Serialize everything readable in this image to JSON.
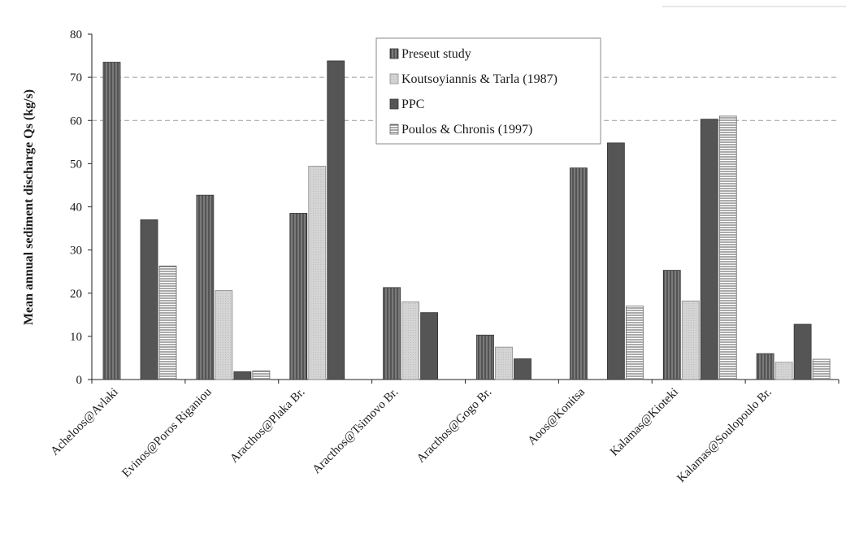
{
  "chart_data": {
    "type": "bar",
    "title": "",
    "xlabel": "",
    "ylabel": "Mean annual sediment discharge Qs (kg/s)",
    "ylim": [
      0,
      80
    ],
    "yticks": [
      0,
      10,
      20,
      30,
      40,
      50,
      60,
      70,
      80
    ],
    "grid": "dashed horizontal at 60 and 70",
    "legend_position": "top-center",
    "categories": [
      "Acheloos@Avlaki",
      "Evinos@Poros Riganiou",
      "Aracthos@Plaka Br.",
      "Aracthos@Tsimovo Br.",
      "Aracthos@Gogo Br.",
      "Aoos@Konitsa",
      "Kalamas@Kioteki",
      "Kalamas@Soulopoulo Br."
    ],
    "series": [
      {
        "name": "Preseut study",
        "color": "#6b6b6b",
        "pattern": "vertical-lines",
        "values": [
          73.5,
          42.7,
          38.5,
          21.3,
          10.3,
          49.0,
          25.3,
          6.0
        ]
      },
      {
        "name": "Koutsoyiannis & Tarla (1987)",
        "color": "#d0d0d0",
        "pattern": "solid-light",
        "values": [
          null,
          20.6,
          49.4,
          18.0,
          7.5,
          null,
          18.2,
          4.0
        ]
      },
      {
        "name": "PPC",
        "color": "#4e4e4e",
        "pattern": "solid-dark",
        "values": [
          37.0,
          1.8,
          73.8,
          15.5,
          4.8,
          54.8,
          60.3,
          12.8
        ]
      },
      {
        "name": "Poulos & Chronis (1997)",
        "color": "#ffffff",
        "pattern": "horizontal-lines",
        "values": [
          26.3,
          2.0,
          null,
          null,
          null,
          17.0,
          61.0,
          4.7
        ]
      }
    ]
  }
}
